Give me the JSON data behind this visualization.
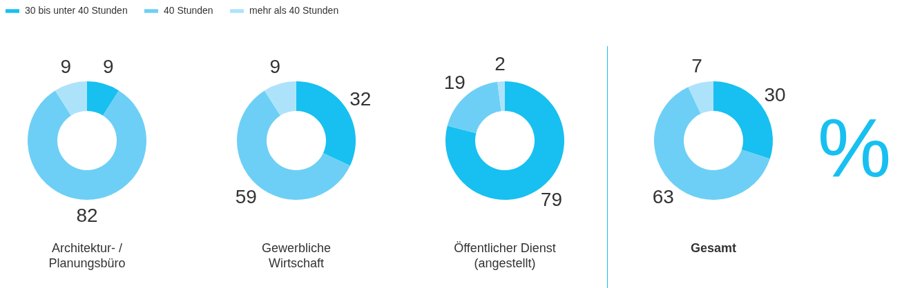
{
  "chart_data": [
    {
      "type": "donut",
      "title": "Architektur- /\nPlanungsbüro",
      "categories": [
        "30 bis unter 40 Stunden",
        "40 Stunden",
        "mehr als 40 Stunden"
      ],
      "values": [
        9,
        82,
        9
      ],
      "colors": [
        "#17c0f0",
        "#6dcff5",
        "#ade3fa"
      ],
      "data_labels": true,
      "legend": "top"
    },
    {
      "type": "donut",
      "title": "Gewerbliche\nWirtschaft",
      "categories": [
        null,
        null,
        null
      ],
      "values": [
        32,
        59,
        9
      ],
      "colors": [
        "#17c0f0",
        "#6dcff5",
        "#ade3fa"
      ],
      "data_labels": true
    },
    {
      "type": "donut",
      "title": "Öffentlicher Dienst\n(angestellt)",
      "categories": [
        null,
        null,
        null
      ],
      "values": [
        79,
        19,
        2
      ],
      "colors": [
        "#17c0f0",
        "#6dcff5",
        "#ade3fa"
      ],
      "data_labels": true
    },
    {
      "type": "donut",
      "title": "Gesamt",
      "categories": [
        null,
        null,
        null
      ],
      "values": [
        30,
        63,
        7
      ],
      "colors": [
        "#17c0f0",
        "#6dcff5",
        "#ade3fa"
      ],
      "data_labels": true,
      "annotations": [
        "%"
      ]
    }
  ]
}
